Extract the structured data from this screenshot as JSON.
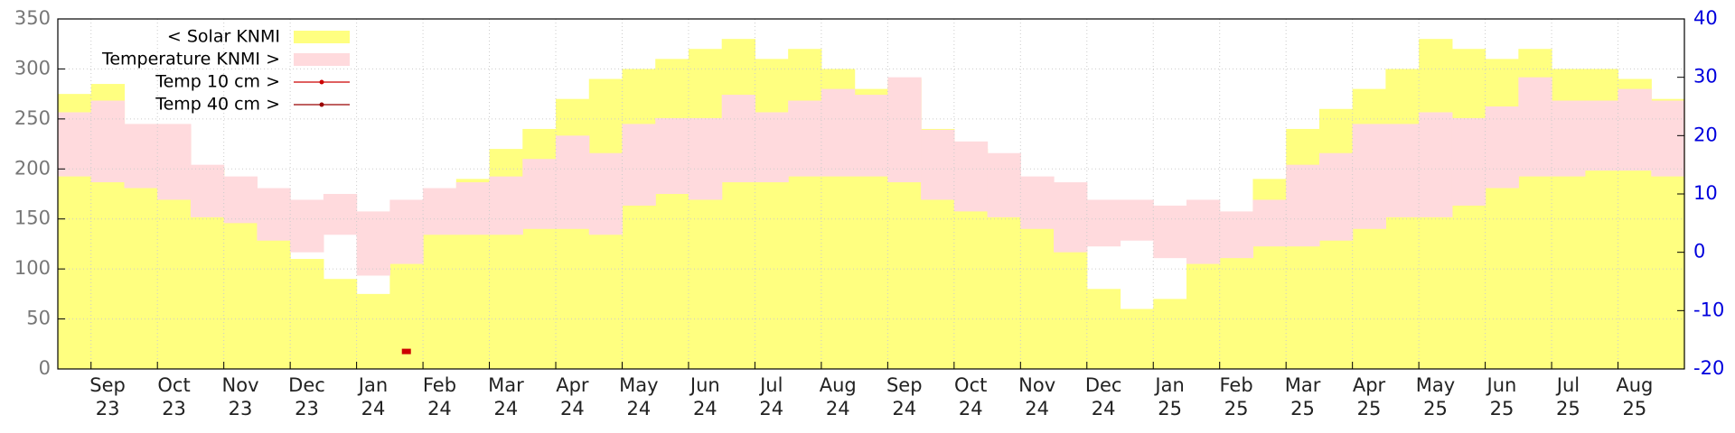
{
  "chart_data": {
    "type": "bar",
    "categories": [
      null,
      "Sep\n23",
      null,
      "Oct\n23",
      null,
      "Nov\n23",
      null,
      "Dec\n23",
      null,
      "Jan\n24",
      null,
      "Feb\n24",
      null,
      "Mar\n24",
      null,
      "Apr\n24",
      null,
      "May\n24",
      null,
      "Jun\n24",
      null,
      "Jul\n24",
      null,
      "Aug\n24",
      null,
      "Sep\n24",
      null,
      "Oct\n24",
      null,
      "Nov\n24",
      null,
      "Dec\n24",
      null,
      "Jan\n25",
      null,
      "Feb\n25",
      null,
      "Mar\n25",
      null,
      "Apr\n25",
      null,
      "May\n25",
      null,
      "Jun\n25",
      null,
      "Jul\n25",
      null,
      "Aug\n25",
      null
    ],
    "series": [
      {
        "name": "< Solar KNMI",
        "color": "#ffff80",
        "values": [
          275,
          285,
          240,
          240,
          200,
          180,
          150,
          110,
          90,
          75,
          120,
          170,
          190,
          220,
          240,
          270,
          290,
          300,
          310,
          320,
          330,
          310,
          320,
          300,
          280,
          290,
          240,
          220,
          190,
          150,
          120,
          80,
          60,
          70,
          110,
          130,
          190,
          240,
          260,
          280,
          300,
          330,
          320,
          310,
          320,
          300,
          300,
          290,
          270
        ]
      },
      {
        "name": "Temperature KNMI >",
        "color": "#ffdadd",
        "axis": "y2",
        "values": [
          [
            13,
            24
          ],
          [
            12,
            26
          ],
          [
            11,
            22
          ],
          [
            9,
            22
          ],
          [
            6,
            15
          ],
          [
            5,
            13
          ],
          [
            2,
            11
          ],
          [
            0,
            9
          ],
          [
            3,
            10
          ],
          [
            -4,
            7
          ],
          [
            -2,
            9
          ],
          [
            3,
            11
          ],
          [
            3,
            12
          ],
          [
            3,
            13
          ],
          [
            4,
            16
          ],
          [
            4,
            20
          ],
          [
            3,
            17
          ],
          [
            8,
            22
          ],
          [
            10,
            23
          ],
          [
            9,
            23
          ],
          [
            12,
            27
          ],
          [
            12,
            24
          ],
          [
            13,
            26
          ],
          [
            13,
            28
          ],
          [
            13,
            27
          ],
          [
            12,
            30
          ],
          [
            9,
            21
          ],
          [
            7,
            19
          ],
          [
            6,
            17
          ],
          [
            4,
            13
          ],
          [
            0,
            12
          ],
          [
            1,
            9
          ],
          [
            2,
            9
          ],
          [
            -1,
            8
          ],
          [
            -2,
            9
          ],
          [
            -1,
            7
          ],
          [
            1,
            9
          ],
          [
            1,
            15
          ],
          [
            2,
            17
          ],
          [
            4,
            22
          ],
          [
            6,
            22
          ],
          [
            6,
            24
          ],
          [
            8,
            23
          ],
          [
            11,
            25
          ],
          [
            13,
            30
          ],
          [
            13,
            26
          ],
          [
            14,
            26
          ],
          [
            14,
            28
          ],
          [
            13,
            26
          ]
        ]
      },
      {
        "name": "Temp 10 cm >",
        "color": "#cc0000",
        "axis": "y2",
        "values": [
          null,
          null,
          null,
          null,
          null,
          null,
          null,
          null,
          null,
          null,
          -17,
          null,
          null,
          null,
          null,
          null,
          null,
          null,
          null,
          null,
          null,
          null,
          null,
          null,
          null,
          null,
          null,
          null,
          null,
          null,
          null,
          null,
          null,
          null,
          null,
          null,
          null,
          null,
          null,
          null,
          null,
          null,
          null,
          null,
          null,
          null,
          null,
          null,
          null
        ]
      },
      {
        "name": "Temp 40 cm >",
        "color": "#990000",
        "axis": "y2",
        "values": [
          null,
          null,
          null,
          null,
          null,
          null,
          null,
          null,
          null,
          null,
          null,
          null,
          null,
          null,
          null,
          null,
          null,
          null,
          null,
          null,
          null,
          null,
          null,
          null,
          null,
          null,
          null,
          null,
          null,
          null,
          null,
          null,
          null,
          null,
          null,
          null,
          null,
          null,
          null,
          null,
          null,
          null,
          null,
          null,
          null,
          null,
          null,
          null,
          null
        ]
      }
    ],
    "ylim": [
      0,
      350
    ],
    "yticks": [
      0,
      50,
      100,
      150,
      200,
      250,
      300,
      350
    ],
    "y2lim": [
      -20,
      40
    ],
    "y2ticks": [
      -20,
      -10,
      0,
      10,
      20,
      30,
      40
    ],
    "grid": true,
    "legend": "top-left"
  }
}
